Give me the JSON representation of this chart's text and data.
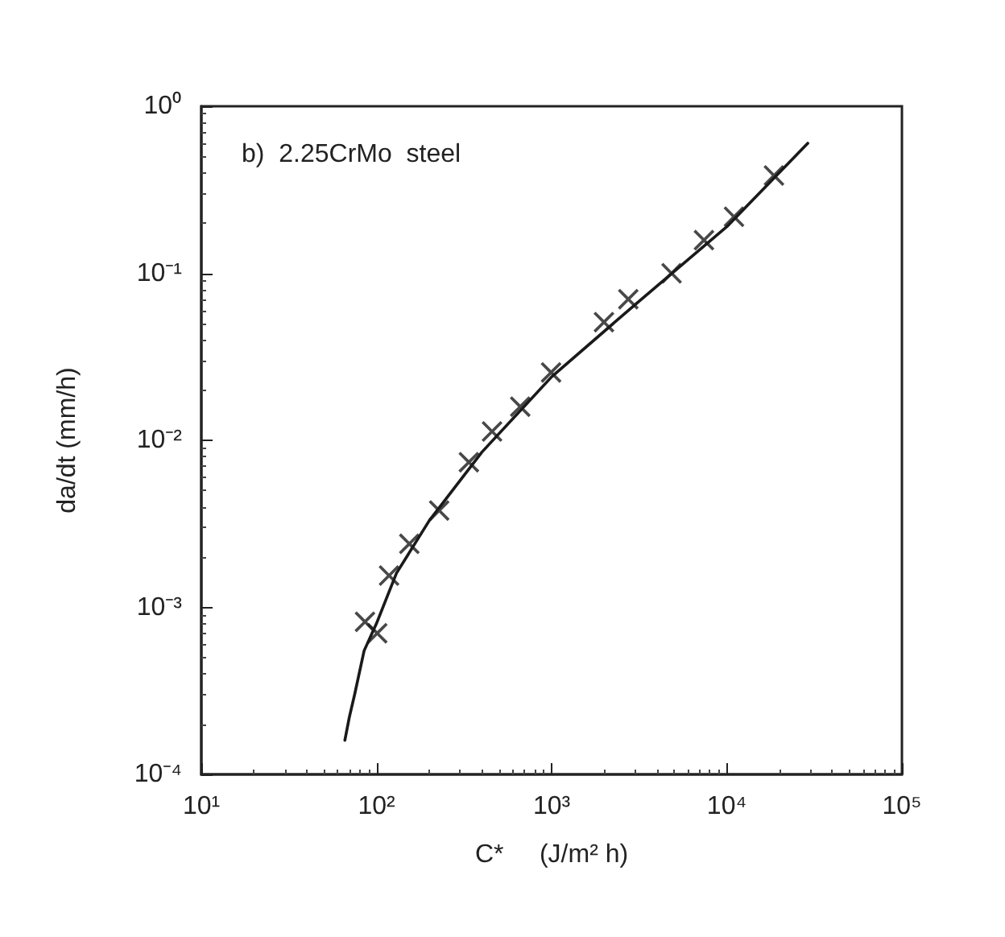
{
  "chart_data": {
    "type": "scatter",
    "annotations": [
      "b)  2.25CrMo  steel"
    ],
    "xlabel": "C*     (J/m² h)",
    "ylabel": "da/dt (mm/h)",
    "log": "xy",
    "grid": false,
    "marker": "cross",
    "xlim": [
      10,
      100000
    ],
    "ylim": [
      0.0001,
      1
    ],
    "xticks": [
      {
        "value": 10,
        "label": "10¹"
      },
      {
        "value": 100,
        "label": "10²"
      },
      {
        "value": 1000,
        "label": "10³"
      },
      {
        "value": 10000,
        "label": "10⁴"
      },
      {
        "value": 100000,
        "label": "10⁵"
      }
    ],
    "yticks": [
      {
        "value": 0.0001,
        "label": "10⁻⁴"
      },
      {
        "value": 0.001,
        "label": "10⁻³"
      },
      {
        "value": 0.01,
        "label": "10⁻²"
      },
      {
        "value": 0.1,
        "label": "10⁻¹"
      },
      {
        "value": 1,
        "label": "10⁰"
      }
    ],
    "series": [
      {
        "color": "#1a1a1a",
        "x": [
          86,
          101,
          118,
          154,
          228,
          337,
          457,
          662,
          993,
          1990,
          2740,
          4840,
          7410,
          11000,
          18600
        ],
        "values": [
          0.00082,
          0.0007,
          0.00155,
          0.0024,
          0.0038,
          0.0074,
          0.0113,
          0.0159,
          0.0255,
          0.051,
          0.07,
          0.1,
          0.158,
          0.218,
          0.385
        ]
      },
      {
        "type": "line",
        "color": "#1a1a1a",
        "marker": "none",
        "line_style": "solid",
        "x": [
          66,
          70,
          75,
          85,
          100,
          130,
          200,
          400,
          1000,
          3000,
          10000,
          29000
        ],
        "values": [
          0.00016,
          0.00022,
          0.0003,
          0.00055,
          0.0008,
          0.0016,
          0.0033,
          0.0085,
          0.024,
          0.065,
          0.19,
          0.6
        ]
      }
    ]
  }
}
